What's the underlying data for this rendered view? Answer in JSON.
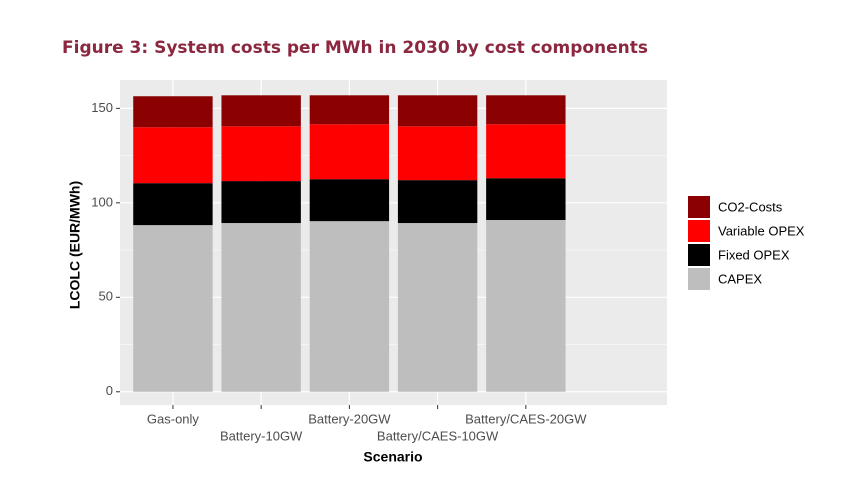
{
  "chart_data": {
    "type": "stacked_bar",
    "title": "Figure 3: System costs per MWh in 2030 by cost components",
    "x_label": "Scenario",
    "y_label": "LCOLC (EUR/MWh)",
    "categories": [
      "Gas-only",
      "Battery-10GW",
      "Battery-20GW",
      "Battery/CAES-10GW",
      "Battery/CAES-20GW"
    ],
    "series": [
      {
        "name": "CAPEX",
        "color": "#bebebe",
        "values": [
          88.2,
          89.3,
          90.3,
          89.3,
          90.9
        ]
      },
      {
        "name": "Fixed OPEX",
        "color": "#000000",
        "values": [
          22.2,
          22.2,
          22.2,
          22.7,
          22.1
        ]
      },
      {
        "name": "Variable OPEX",
        "color": "#ff0000",
        "values": [
          29.6,
          29.0,
          29.1,
          28.5,
          28.6
        ]
      },
      {
        "name": "CO2-Costs",
        "color": "#8b0000",
        "values": [
          16.4,
          16.4,
          15.3,
          16.4,
          15.3
        ]
      }
    ],
    "ylim": [
      -7,
      165
    ],
    "yticks": [
      0,
      50,
      100,
      150
    ],
    "grid": true
  }
}
